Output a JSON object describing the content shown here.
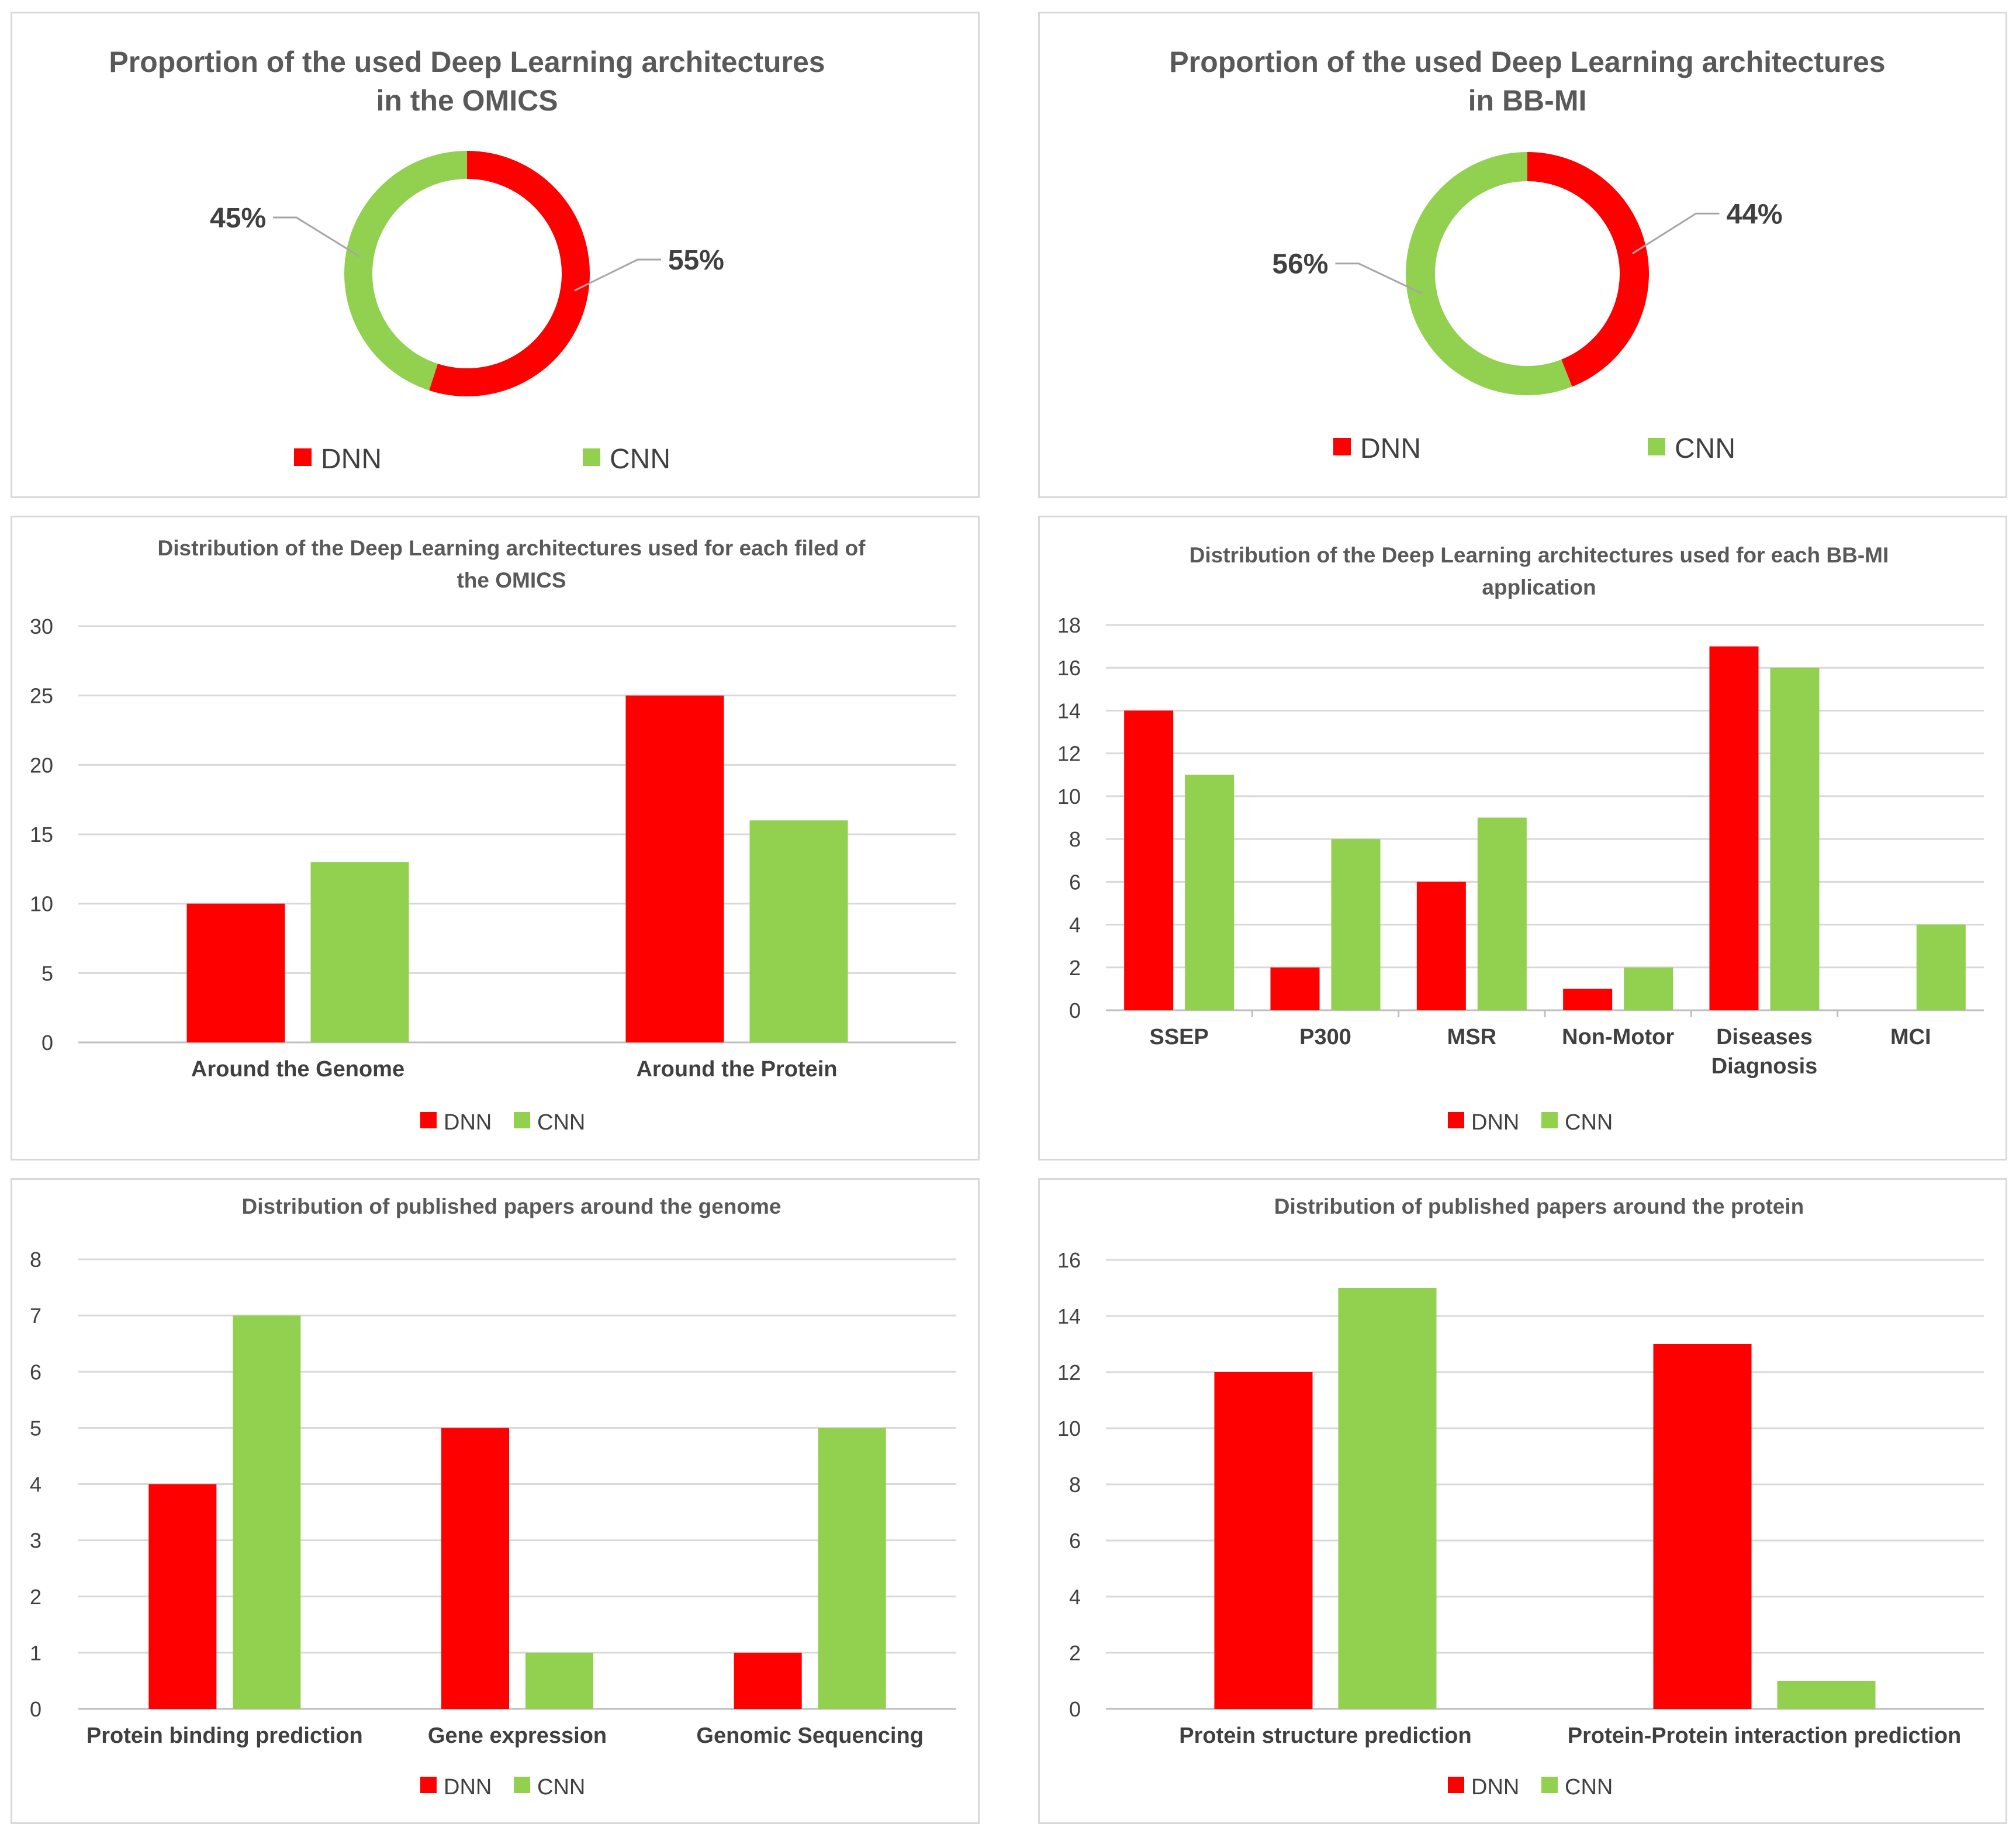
{
  "colors": {
    "dnn": "#ff0000",
    "cnn": "#92d050",
    "grid": "#d9d9d9",
    "axis": "#bfbfbf"
  },
  "chart_data": [
    {
      "type": "pie",
      "title": [
        "Proportion of the used Deep Learning architectures",
        "in the OMICS"
      ],
      "labels": [
        "DNN",
        "CNN"
      ],
      "values": [
        55,
        45
      ],
      "data_labels": [
        "55%",
        "45%"
      ],
      "legend": [
        "DNN",
        "CNN"
      ]
    },
    {
      "type": "pie",
      "title": [
        "Proportion of the used Deep Learning architectures",
        "in BB-MI"
      ],
      "labels": [
        "DNN",
        "CNN"
      ],
      "values": [
        44,
        56
      ],
      "data_labels": [
        "44%",
        "56%"
      ],
      "legend": [
        "DNN",
        "CNN"
      ]
    },
    {
      "type": "bar",
      "title": [
        "Distribution of the Deep Learning architectures used for each filed of",
        "the OMICS"
      ],
      "categories": [
        [
          "Around the Genome"
        ],
        [
          "Around the Protein"
        ]
      ],
      "series": [
        {
          "name": "DNN",
          "values": [
            10,
            25
          ]
        },
        {
          "name": "CNN",
          "values": [
            13,
            16
          ]
        }
      ],
      "ylim": [
        0,
        30
      ],
      "yticks": [
        0,
        5,
        10,
        15,
        20,
        25,
        30
      ],
      "legend": [
        "DNN",
        "CNN"
      ]
    },
    {
      "type": "bar",
      "title": [
        "Distribution of the Deep Learning architectures used for each BB-MI",
        "application"
      ],
      "categories": [
        [
          "SSEP"
        ],
        [
          "P300"
        ],
        [
          "MSR"
        ],
        [
          "Non-Motor"
        ],
        [
          "Diseases",
          "Diagnosis"
        ],
        [
          "MCI"
        ]
      ],
      "series": [
        {
          "name": "DNN",
          "values": [
            14,
            2,
            6,
            1,
            17,
            0
          ]
        },
        {
          "name": "CNN",
          "values": [
            11,
            8,
            9,
            2,
            16,
            4
          ]
        }
      ],
      "ylim": [
        0,
        18
      ],
      "yticks": [
        0,
        2,
        4,
        6,
        8,
        10,
        12,
        14,
        16,
        18
      ],
      "legend": [
        "DNN",
        "CNN"
      ]
    },
    {
      "type": "bar",
      "title": [
        "Distribution of published papers around the genome"
      ],
      "categories": [
        [
          "Protein binding prediction"
        ],
        [
          "Gene expression"
        ],
        [
          "Genomic Sequencing"
        ]
      ],
      "series": [
        {
          "name": "DNN",
          "values": [
            4,
            5,
            1
          ]
        },
        {
          "name": "CNN",
          "values": [
            7,
            1,
            5
          ]
        }
      ],
      "ylim": [
        0,
        8
      ],
      "yticks": [
        0,
        1,
        2,
        3,
        4,
        5,
        6,
        7,
        8
      ],
      "legend": [
        "DNN",
        "CNN"
      ]
    },
    {
      "type": "bar",
      "title": [
        "Distribution of published papers around the protein"
      ],
      "categories": [
        [
          "Protein structure prediction"
        ],
        [
          "Protein-Protein interaction prediction"
        ]
      ],
      "series": [
        {
          "name": "DNN",
          "values": [
            12,
            13
          ]
        },
        {
          "name": "CNN",
          "values": [
            15,
            1
          ]
        }
      ],
      "ylim": [
        0,
        16
      ],
      "yticks": [
        0,
        2,
        4,
        6,
        8,
        10,
        12,
        14,
        16
      ],
      "legend": [
        "DNN",
        "CNN"
      ]
    }
  ]
}
